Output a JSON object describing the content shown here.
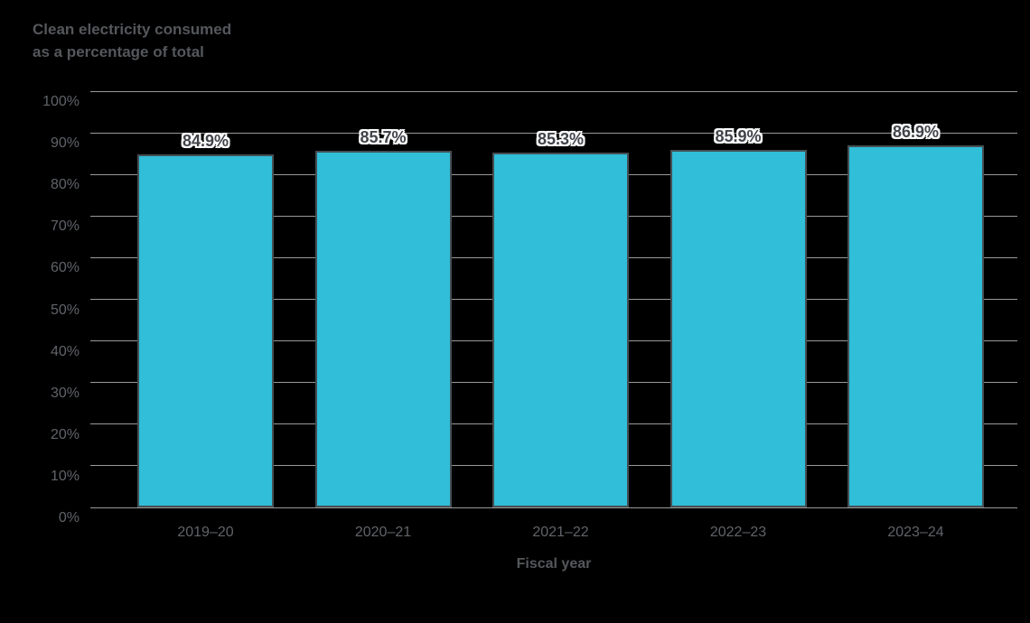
{
  "title": {
    "line1": "Clean electricity consumed",
    "line2": "as a percentage of total"
  },
  "x_axis_title": "Fiscal year",
  "chart_data": {
    "type": "bar",
    "title": "Clean electricity consumed as a percentage of total",
    "categories": [
      "2019–20",
      "2020–21",
      "2021–22",
      "2022–23",
      "2023–24"
    ],
    "values": [
      84.9,
      85.7,
      85.3,
      85.9,
      86.9
    ],
    "data_labels": [
      "84.9%",
      "85.7%",
      "85.3%",
      "85.9%",
      "86.9%"
    ],
    "xlabel": "Fiscal year",
    "ylabel": "Clean electricity consumed as a percentage of total",
    "ylim": [
      0,
      100
    ],
    "ytick_interval": 10,
    "ytick_labels": [
      "0%",
      "10%",
      "20%",
      "30%",
      "40%",
      "50%",
      "60%",
      "70%",
      "80%",
      "90%",
      "100%"
    ],
    "grid": true,
    "legend": false,
    "colors": {
      "bar_fill": "#30BED8",
      "bar_border": "#454F54",
      "gridline": "#999999",
      "axis_text": "#606369",
      "title_text": "#54575B",
      "label_text": "#41444A",
      "label_halo": "#FFFFFF",
      "background": "#000000"
    }
  }
}
